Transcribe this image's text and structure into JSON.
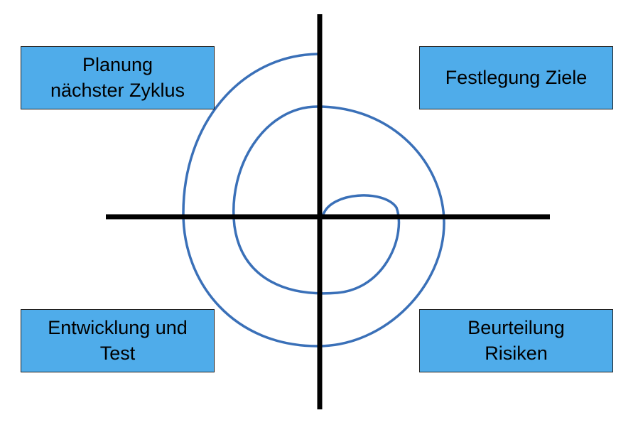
{
  "quadrants": {
    "top_left": {
      "label": "Planung\nnächster Zyklus"
    },
    "top_right": {
      "label": "Festlegung Ziele"
    },
    "bottom_left": {
      "label": "Entwicklung und\nTest"
    },
    "bottom_right": {
      "label": "Beurteilung\nRisiken"
    }
  },
  "colors": {
    "box_fill": "#4facea",
    "spiral": "#3a70b8",
    "axes": "#000000"
  }
}
